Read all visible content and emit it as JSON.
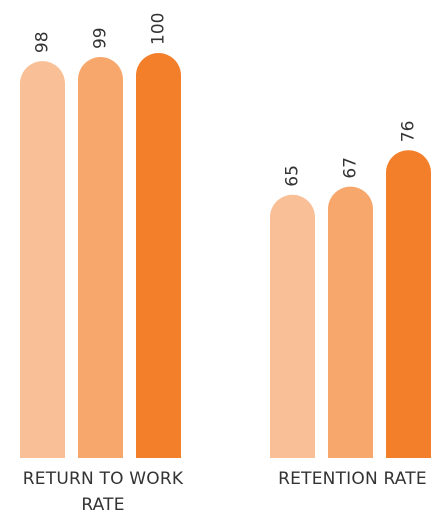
{
  "chart_data": {
    "type": "bar",
    "title": "",
    "xlabel": "",
    "ylabel": "",
    "categories": [
      "RETURN TO WORK RATE",
      "RETENTION RATE"
    ],
    "series": [
      {
        "values": [
          98,
          65
        ],
        "color": "#f9c097"
      },
      {
        "values": [
          99,
          67
        ],
        "color": "#f7a76b"
      },
      {
        "values": [
          100,
          76
        ],
        "color": "#f47f2a"
      }
    ],
    "data_labels": true,
    "grid": false,
    "legend": "none"
  }
}
